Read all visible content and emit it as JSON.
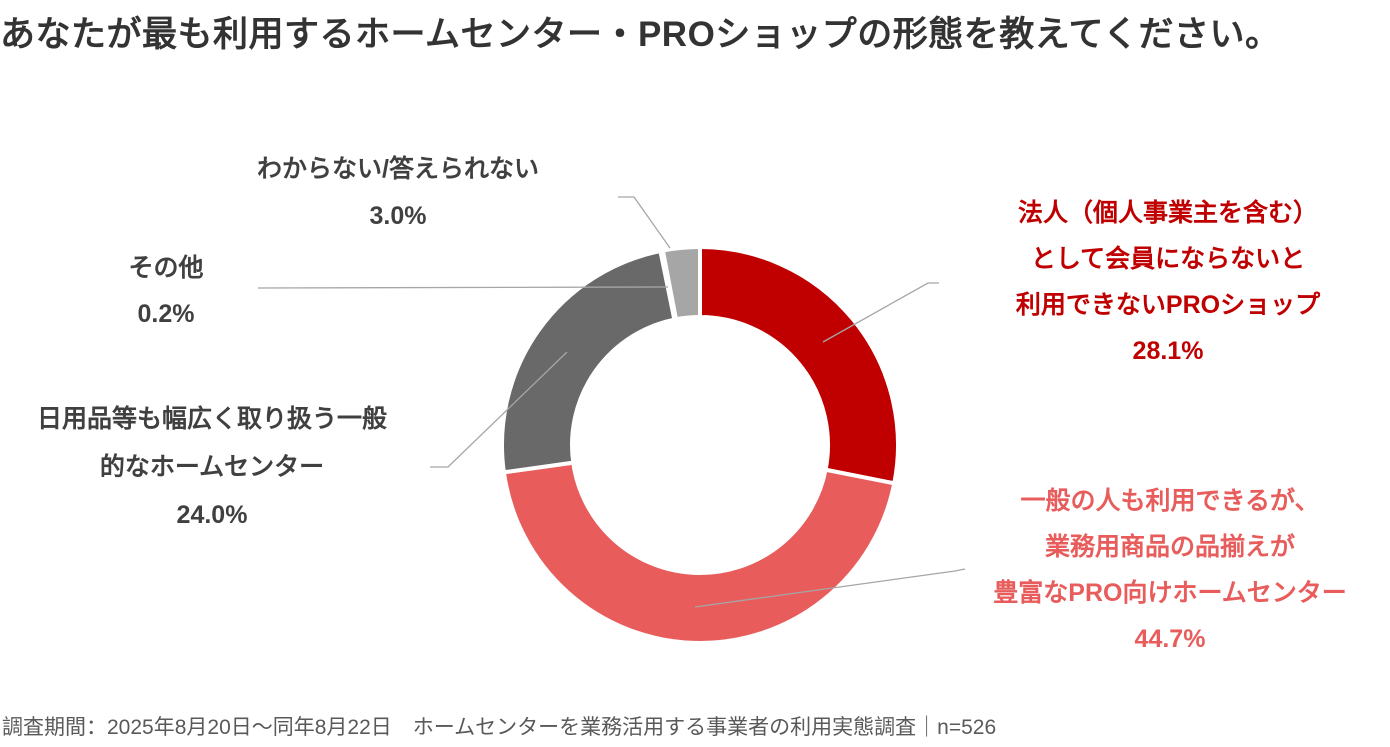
{
  "title": "あなたが最も利用するホームセンター・PROショップの形態を教えてください。",
  "footnote": "調査期間：2025年8月20日〜同年8月22日　ホームセンターを業務活用する事業者の利用実態調査｜n=526",
  "colors": {
    "dark_red": "#C00000",
    "salmon": "#E85C5C",
    "dark_gray": "#696969",
    "light_gray": "#A6A6A6",
    "leader_line": "#A6A6A6",
    "title_text": "#333333",
    "label_text": "#404040",
    "footnote_text": "#595959"
  },
  "labels": {
    "dont_know": {
      "line1": "わからない/答えられない",
      "pct": "3.0%"
    },
    "other": {
      "line1": "その他",
      "pct": "0.2%"
    },
    "general_hc": {
      "line1": "日用品等も幅広く取り扱う一般",
      "line2": "的なホームセンター",
      "pct": "24.0%"
    },
    "pro_shop": {
      "line1": "法人（個人事業主を含む）",
      "line2": "として会員にならないと",
      "line3": "利用できないPROショップ",
      "pct": "28.1%"
    },
    "pro_hc": {
      "line1": "一般の人も利用できるが、",
      "line2": "業務用商品の品揃えが",
      "line3": "豊富なPRO向けホームセンター",
      "pct": "44.7%"
    }
  },
  "chart_data": {
    "type": "pie",
    "subtype": "donut",
    "title": "あなたが最も利用するホームセンター・PROショップの形態を教えてください。",
    "unit": "%",
    "sample_size": 526,
    "start_angle_deg": 0,
    "direction": "clockwise",
    "donut_hole_ratio": 0.65,
    "slices": [
      {
        "name": "法人（個人事業主を含む）として会員にならないと利用できないPROショップ",
        "value": 28.1,
        "color": "#C00000"
      },
      {
        "name": "一般の人も利用できるが、業務用商品の品揃えが豊富なPRO向けホームセンター",
        "value": 44.7,
        "color": "#E85C5C"
      },
      {
        "name": "日用品等も幅広く取り扱う一般的なホームセンター",
        "value": 24.0,
        "color": "#696969"
      },
      {
        "name": "その他",
        "value": 0.2,
        "color": "#999999"
      },
      {
        "name": "わからない/答えられない",
        "value": 3.0,
        "color": "#A6A6A6"
      }
    ]
  }
}
